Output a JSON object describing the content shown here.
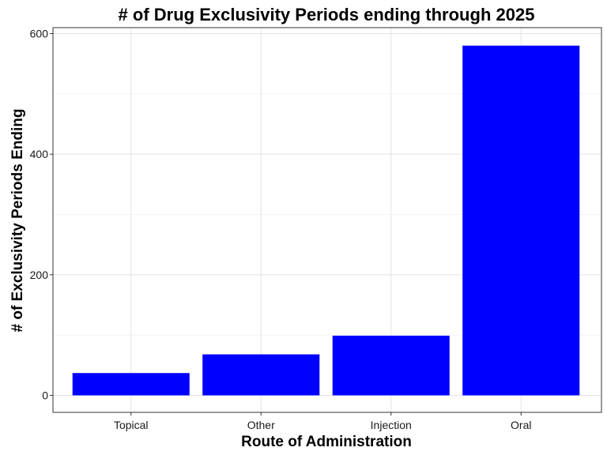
{
  "chart_data": {
    "type": "bar",
    "title": "# of Drug Exclusivity Periods ending through 2025",
    "xlabel": "Route of Administration",
    "ylabel": "# of Exclusivity Periods Ending",
    "categories": [
      "Topical",
      "Other",
      "Injection",
      "Oral"
    ],
    "values": [
      37,
      68,
      99,
      580
    ],
    "ylim": [
      0,
      600
    ],
    "yticks": [
      0,
      200,
      400,
      600
    ],
    "grid": true,
    "bar_color": "#0000ff"
  }
}
